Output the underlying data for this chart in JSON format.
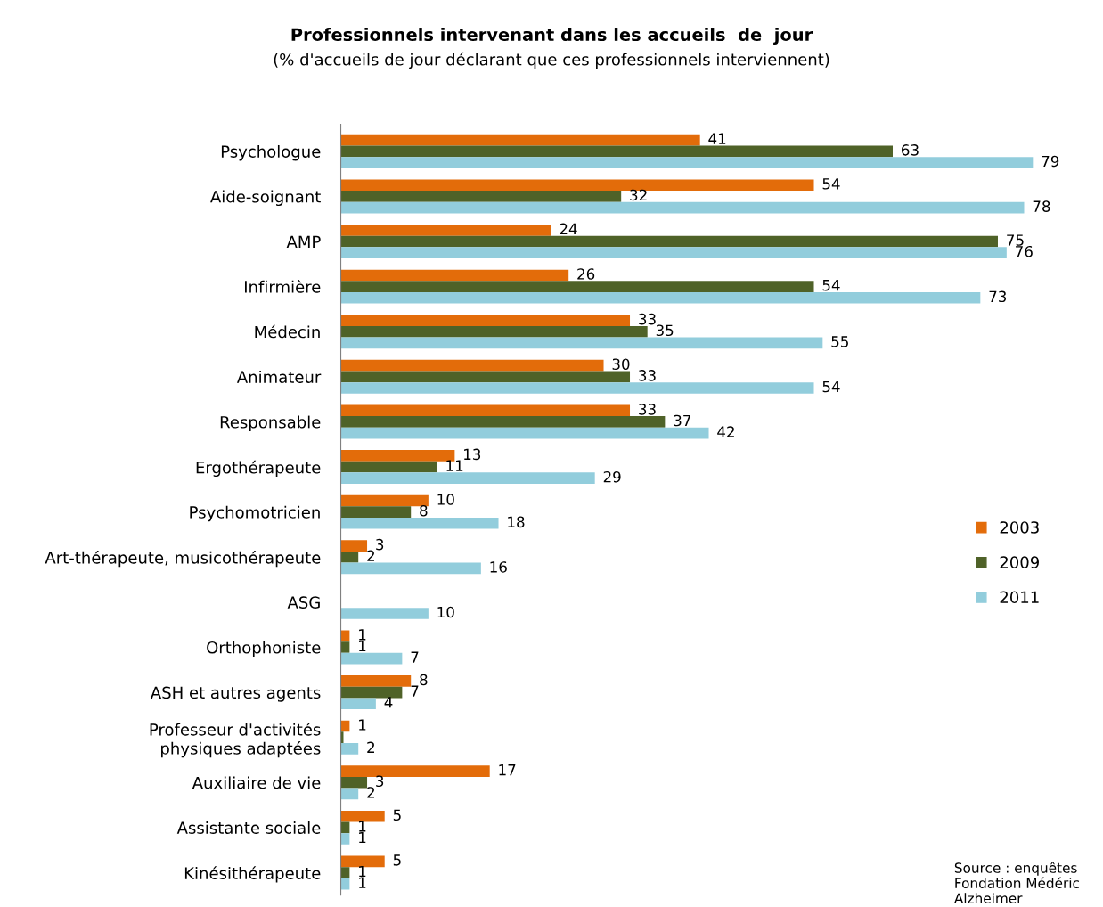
{
  "chart_data": {
    "type": "bar",
    "orientation": "horizontal",
    "title": "Professionnels intervenant dans les accueils  de  jour",
    "subtitle": "(% d'accueils de jour déclarant que ces professionnels interviennent)",
    "categories": [
      "Psychologue",
      "Aide-soignant",
      "AMP",
      "Infirmière",
      "Médecin",
      "Animateur",
      "Responsable",
      "Ergothérapeute",
      "Psychomotricien",
      "Art-thérapeute, musicothérapeute",
      "ASG",
      "Orthophoniste",
      "ASH et autres agents",
      "Professeur d'activités\nphysiques adaptées",
      "Auxiliaire de vie",
      "Assistante sociale",
      "Kinésithérapeute"
    ],
    "series": [
      {
        "name": "2003",
        "color": "#e36c0a",
        "values": [
          41,
          54,
          24,
          26,
          33,
          30,
          33,
          13,
          10,
          3,
          null,
          1,
          8,
          1,
          17,
          5,
          5
        ],
        "value_labels": [
          "41",
          "54",
          "24",
          "26",
          "33",
          "30",
          "33",
          "13",
          "10",
          "3",
          null,
          "1",
          "8",
          "1",
          "17",
          "5",
          "5"
        ]
      },
      {
        "name": "2009",
        "color": "#4f6228",
        "values": [
          63,
          32,
          75,
          54,
          35,
          33,
          37,
          11,
          8,
          2,
          null,
          1,
          7,
          0.3,
          3,
          1,
          1
        ],
        "value_labels": [
          "63",
          "32",
          "75",
          "54",
          "35",
          "33",
          "37",
          "11",
          "8",
          "2",
          null,
          "1",
          "7",
          null,
          "3",
          "1",
          "1"
        ]
      },
      {
        "name": "2011",
        "color": "#92cddc",
        "values": [
          79,
          78,
          76,
          73,
          55,
          54,
          42,
          29,
          18,
          16,
          10,
          7,
          4,
          2,
          2,
          1,
          1
        ],
        "value_labels": [
          "79",
          "78",
          "76",
          "73",
          "55",
          "54",
          "42",
          "29",
          "18",
          "16",
          "10",
          "7",
          "4",
          "2",
          "2",
          "1",
          "1"
        ]
      }
    ],
    "legend": "right",
    "annotations": [
      "Source : enquêtes\nFondation Médéric\nAlzheimer"
    ]
  }
}
